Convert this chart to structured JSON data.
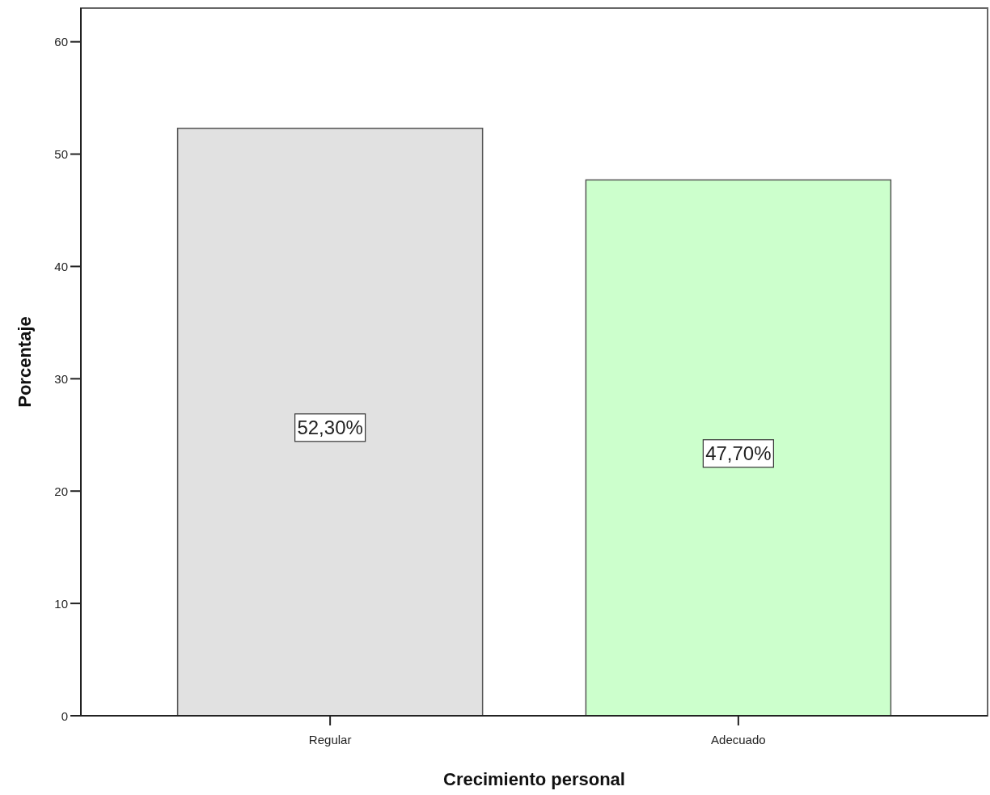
{
  "chart_data": {
    "type": "bar",
    "xlabel": "Crecimiento personal",
    "ylabel": "Porcentaje",
    "categories": [
      "Regular",
      "Adecuado"
    ],
    "values": [
      52.3,
      47.7
    ],
    "colors": [
      "#e1e1e1",
      "#ccffcc"
    ],
    "value_labels": [
      "52,30%",
      "47,70%"
    ],
    "ylim": [
      0,
      63
    ],
    "yticks": [
      0,
      10,
      20,
      30,
      40,
      50,
      60
    ]
  }
}
